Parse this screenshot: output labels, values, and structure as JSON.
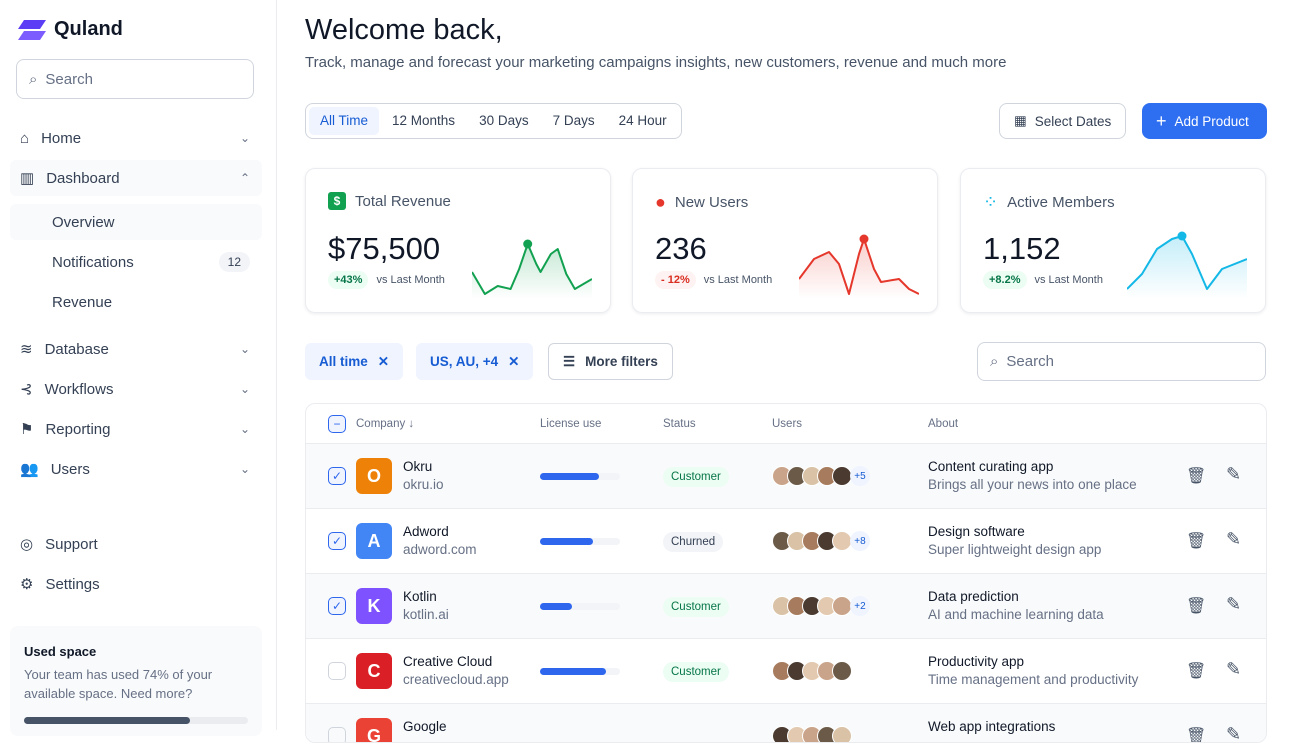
{
  "app": {
    "name": "Quland",
    "search_placeholder": "Search"
  },
  "sidebar": {
    "items": [
      {
        "label": "Home"
      },
      {
        "label": "Dashboard"
      },
      {
        "label": "Database"
      },
      {
        "label": "Workflows"
      },
      {
        "label": "Reporting"
      },
      {
        "label": "Users"
      }
    ],
    "dashboard_sub": [
      {
        "label": "Overview"
      },
      {
        "label": "Notifications",
        "badge": "12"
      },
      {
        "label": "Revenue"
      }
    ],
    "footer": [
      {
        "label": "Support"
      },
      {
        "label": "Settings"
      }
    ],
    "used_space": {
      "title": "Used space",
      "text": "Your team has used 74% of your available space. Need more?",
      "percent": 74
    }
  },
  "header": {
    "title": "Welcome back,",
    "subtitle": "Track, manage and forecast your marketing campaigns insights, new customers, revenue and much more"
  },
  "tabs": [
    "All Time",
    "12 Months",
    "30 Days",
    "7 Days",
    "24 Hour"
  ],
  "actions": {
    "select_dates": "Select Dates",
    "add_product": "Add Product"
  },
  "stats": [
    {
      "title": "Total Revenue",
      "value": "$75,500",
      "change": "+43%",
      "vs": "vs Last Month",
      "color": "#12a150",
      "icon": "dollar-icon"
    },
    {
      "title": "New Users",
      "value": "236",
      "change": "- 12%",
      "vs": "vs Last Month",
      "color": "#e5372b",
      "icon": "user-icon"
    },
    {
      "title": "Active Members",
      "value": "1,152",
      "change": "+8.2%",
      "vs": "vs Last Month",
      "color": "#14b8e6",
      "icon": "users-group-icon"
    }
  ],
  "filters": {
    "chips": [
      "All time",
      "US, AU, +4"
    ],
    "more": "More filters",
    "search_placeholder": "Search"
  },
  "table": {
    "headers": {
      "company": "Company",
      "license": "License use",
      "status": "Status",
      "users": "Users",
      "about": "About"
    },
    "rows": [
      {
        "name": "Okru",
        "domain": "okru.io",
        "license": 74,
        "status": "Customer",
        "more": "+5",
        "about": "Content curating app",
        "about_sub": "Brings all your news into one place",
        "checked": true
      },
      {
        "name": "Adword",
        "domain": "adword.com",
        "license": 66,
        "status": "Churned",
        "more": "+8",
        "about": "Design software",
        "about_sub": "Super lightweight design app",
        "checked": true
      },
      {
        "name": "Kotlin",
        "domain": "kotlin.ai",
        "license": 40,
        "status": "Customer",
        "more": "+2",
        "about": "Data prediction",
        "about_sub": "AI and machine learning data",
        "checked": true
      },
      {
        "name": "Creative Cloud",
        "domain": "creativecloud.app",
        "license": 83,
        "status": "Customer",
        "more": "",
        "about": "Productivity app",
        "about_sub": "Time management and productivity",
        "checked": false
      },
      {
        "name": "Google",
        "domain": "",
        "license": 0,
        "status": "",
        "more": "",
        "about": "Web app integrations",
        "about_sub": "",
        "checked": false
      }
    ]
  }
}
